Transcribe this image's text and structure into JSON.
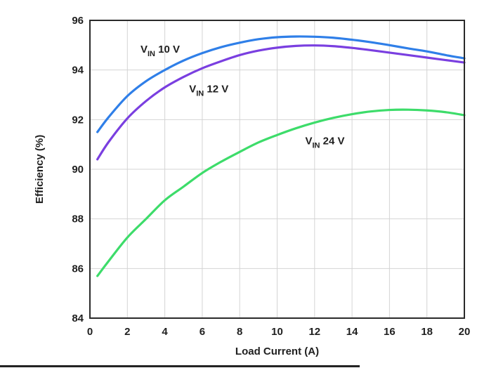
{
  "chart_data": {
    "type": "line",
    "xlabel": "Load Current (A)",
    "ylabel": "Efficiency (%)",
    "xlim": [
      0,
      20
    ],
    "ylim": [
      84,
      96
    ],
    "xticks": [
      0,
      2,
      4,
      6,
      8,
      10,
      12,
      14,
      16,
      18,
      20
    ],
    "yticks": [
      84,
      86,
      88,
      90,
      92,
      94,
      96
    ],
    "grid": true,
    "legend": "inline labels",
    "series": [
      {
        "name": "VIN 10 V",
        "name_main": "V",
        "name_sub": "IN",
        "name_rest": " 10 V",
        "color": "#2f7fe8",
        "x": [
          0.4,
          1,
          2,
          3,
          4,
          5,
          6,
          7,
          8,
          9,
          10,
          11,
          12,
          13,
          14,
          15,
          16,
          17,
          18,
          19,
          20
        ],
        "y": [
          91.5,
          92.1,
          92.95,
          93.55,
          94.0,
          94.38,
          94.68,
          94.92,
          95.1,
          95.24,
          95.32,
          95.35,
          95.34,
          95.3,
          95.22,
          95.12,
          95.0,
          94.87,
          94.75,
          94.6,
          94.47
        ]
      },
      {
        "name": "VIN 12 V",
        "name_main": "V",
        "name_sub": "IN",
        "name_rest": " 12 V",
        "color": "#7a3fe0",
        "x": [
          0.4,
          1,
          2,
          3,
          4,
          5,
          6,
          7,
          8,
          9,
          10,
          11,
          12,
          13,
          14,
          15,
          16,
          17,
          18,
          19,
          20
        ],
        "y": [
          90.4,
          91.1,
          92.05,
          92.75,
          93.3,
          93.72,
          94.07,
          94.35,
          94.6,
          94.78,
          94.9,
          94.97,
          94.99,
          94.96,
          94.89,
          94.8,
          94.7,
          94.6,
          94.5,
          94.4,
          94.3
        ]
      },
      {
        "name": "VIN 24 V",
        "name_main": "V",
        "name_sub": "IN",
        "name_rest": " 24 V",
        "color": "#3ddc6a",
        "x": [
          0.4,
          1,
          2,
          3,
          4,
          5,
          6,
          7,
          8,
          9,
          10,
          11,
          12,
          13,
          14,
          15,
          16,
          17,
          18,
          19,
          20
        ],
        "y": [
          85.7,
          86.3,
          87.25,
          88.0,
          88.75,
          89.3,
          89.85,
          90.3,
          90.7,
          91.08,
          91.38,
          91.65,
          91.88,
          92.07,
          92.22,
          92.33,
          92.39,
          92.4,
          92.37,
          92.3,
          92.18
        ]
      }
    ],
    "annotations": [
      {
        "series": 0,
        "x": 2.7,
        "y": 94.7
      },
      {
        "series": 1,
        "x": 5.3,
        "y": 93.1
      },
      {
        "series": 2,
        "x": 11.5,
        "y": 91.0
      }
    ]
  }
}
